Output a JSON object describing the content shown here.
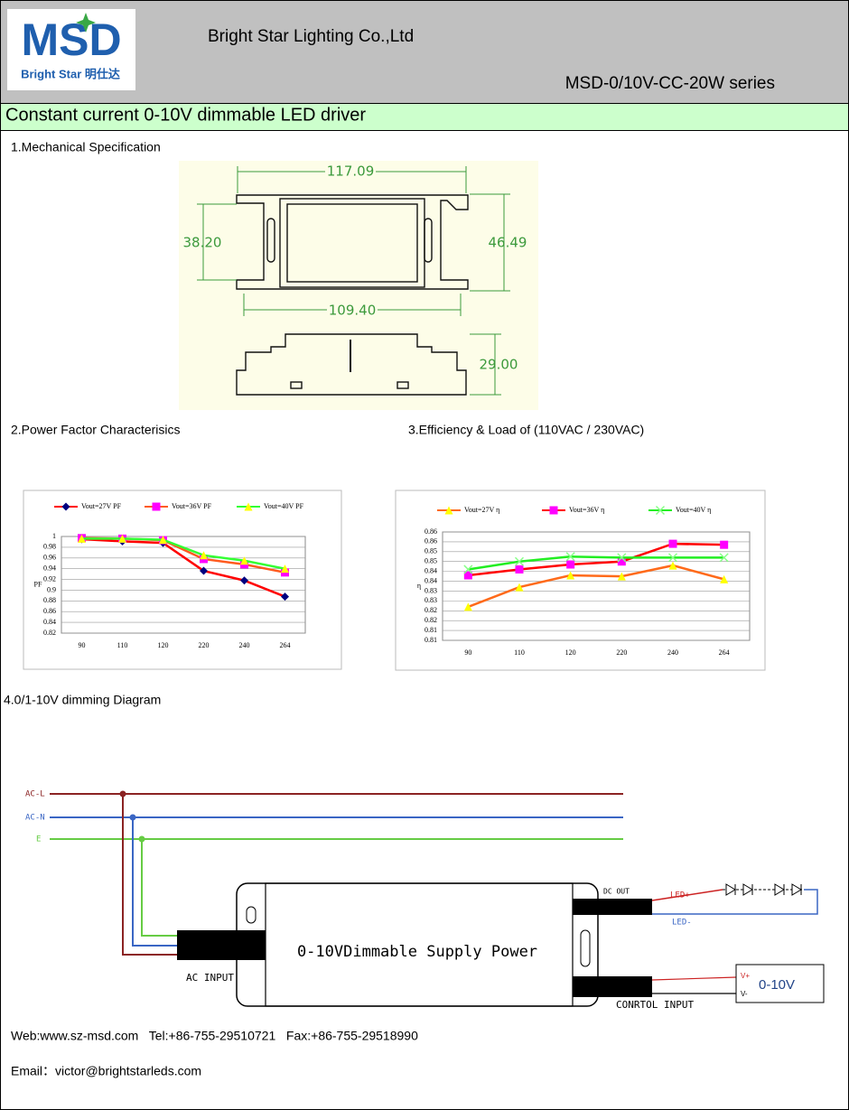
{
  "header": {
    "logo": "MSD",
    "logo_subtitle": "Bright Star 明仕达",
    "company": "Bright Star Lighting Co.,Ltd",
    "series": "MSD-0/10V-CC-20W series",
    "title": "Constant current 0-10V dimmable LED driver"
  },
  "sections": [
    "1.Mechanical Specification",
    "2.Power Factor Characterisics",
    "3.Efficiency & Load of (110VAC / 230VAC)",
    "4.0/1-10V dimming Diagram"
  ],
  "mechanical": {
    "dimensions": [
      "117.09",
      "38.20",
      "46.49",
      "109.40",
      "29.00"
    ]
  },
  "chart_data": [
    {
      "type": "line",
      "y_label": "PF",
      "categories": [
        "90",
        "110",
        "120",
        "220",
        "240",
        "264"
      ],
      "ylim": [
        0.82,
        1
      ],
      "yticks": [
        0.82,
        0.84,
        0.86,
        0.88,
        0.9,
        0.92,
        0.94,
        0.96,
        0.98,
        1
      ],
      "grid": true,
      "legend": "top",
      "series": [
        {
          "name": "Vout=27V PF",
          "color": "#ff0000",
          "marker": "diamond",
          "marker_color": "#000080",
          "values": [
            0.995,
            0.991,
            0.988,
            0.936,
            0.918,
            0.888
          ]
        },
        {
          "name": "Vout=36V PF",
          "color": "#ff5a1e",
          "marker": "square",
          "marker_color": "#ff00ff",
          "values": [
            0.997,
            0.996,
            0.993,
            0.958,
            0.948,
            0.933
          ]
        },
        {
          "name": "Vout=40V PF",
          "color": "#33ff33",
          "marker": "triangle",
          "marker_color": "#ffff00",
          "values": [
            0.996,
            0.996,
            0.994,
            0.965,
            0.955,
            0.94
          ]
        }
      ]
    },
    {
      "type": "line",
      "y_label": "η",
      "categories": [
        "90",
        "110",
        "120",
        "220",
        "240",
        "264"
      ],
      "ylim": [
        0.805,
        0.86
      ],
      "yticks": [
        {
          "value": 0.805,
          "label": "0.81"
        },
        0.81,
        {
          "value": 0.815,
          "label": "0.82"
        },
        0.82,
        {
          "value": 0.825,
          "label": "0.83"
        },
        0.83,
        {
          "value": 0.835,
          "label": "0.84"
        },
        0.84,
        {
          "value": 0.845,
          "label": "0.85"
        },
        0.85,
        {
          "value": 0.855,
          "label": "0.86"
        },
        0.86
      ],
      "grid": true,
      "legend": "top",
      "series": [
        {
          "name": "Vout=27V η",
          "color": "#ff6a1a",
          "marker": "triangle",
          "marker_color": "#ffff00",
          "values": [
            0.822,
            0.832,
            0.838,
            0.8375,
            0.843,
            0.836
          ]
        },
        {
          "name": "Vout=36V η",
          "color": "#ff0000",
          "marker": "square",
          "marker_color": "#ff00ff",
          "values": [
            0.838,
            0.841,
            0.8435,
            0.845,
            0.854,
            0.8535
          ]
        },
        {
          "name": "Vout=40V η",
          "color": "#22ee22",
          "marker": "x",
          "marker_color": "#88ff88",
          "values": [
            0.841,
            0.845,
            0.8475,
            0.847,
            0.847,
            0.847
          ]
        }
      ]
    }
  ],
  "diagram": {
    "ac_l": "AC-L",
    "ac_n": "AC-N",
    "earth": "E",
    "dc_out": "DC OUT",
    "led_plus": "LED+",
    "led_minus": "LED-",
    "power": "0-10VDimmable Supply Power",
    "ac_input": "AC INPUT",
    "control_input": "CONRTOL INPUT",
    "v_plus": "V+",
    "v_minus": "V-",
    "dimmer": "0-10V"
  },
  "footer": {
    "contact": "Web:www.sz-msd.com   Tel:+86-755-29510721   Fax:+86-755-29518990",
    "email": "Email：victor@brightstarleds.com"
  }
}
